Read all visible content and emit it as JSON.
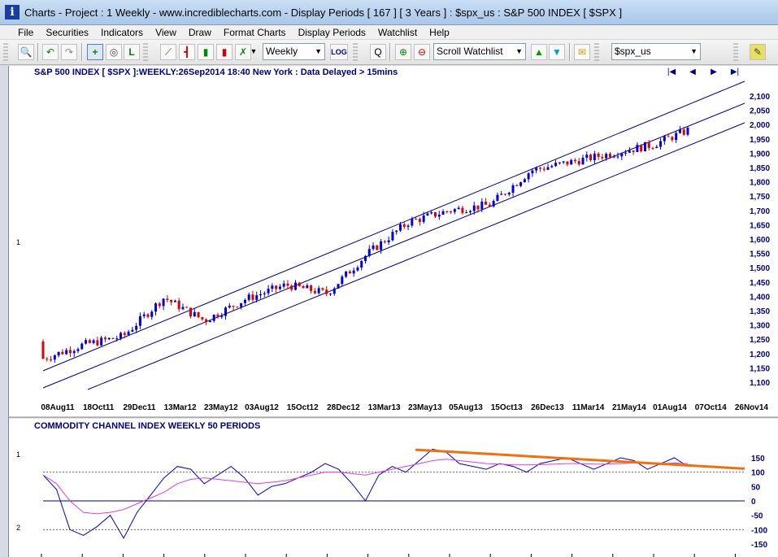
{
  "window": {
    "title": "Charts - Project : 1 Weekly - www.incrediblecharts.com - Display Periods  [ 167 ]  [ 3 Years ] : $spx_us : S&P 500 INDEX  [ $SPX ]",
    "icon_letter": "i"
  },
  "menu": [
    "File",
    "Securities",
    "Indicators",
    "View",
    "Draw",
    "Format Charts",
    "Display Periods",
    "Watchlist",
    "Help"
  ],
  "toolbar": {
    "period_select": "Weekly",
    "log_label": "LOG",
    "watchlist_select": "Scroll Watchlist",
    "security_select": "$spx_us"
  },
  "chart": {
    "header": "S&P 500 INDEX [ $SPX ]:WEEKLY:26Sep2014 18:40 New York : Data Delayed > 15mins",
    "nav": [
      "|◀",
      "◀",
      "▶",
      "▶|"
    ],
    "pane_label": "1",
    "y_ticks": [
      "2,100",
      "2,050",
      "2,000",
      "1,950",
      "1,900",
      "1,850",
      "1,800",
      "1,750",
      "1,700",
      "1,650",
      "1,600",
      "1,550",
      "1,500",
      "1,450",
      "1,400",
      "1,350",
      "1,300",
      "1,250",
      "1,200",
      "1,150",
      "1,100"
    ],
    "x_ticks": [
      "08Aug11",
      "18Oct11",
      "29Dec11",
      "13Mar12",
      "23May12",
      "03Aug12",
      "15Oct12",
      "28Dec12",
      "13Mar13",
      "23May13",
      "05Aug13",
      "15Oct13",
      "26Dec13",
      "11Mar14",
      "21May14",
      "01Aug14",
      "07Oct14",
      "26Nov14"
    ]
  },
  "indicator": {
    "header": "COMMODITY CHANNEL INDEX WEEKLY 50 PERIODS",
    "pane_labels": [
      "1",
      "2"
    ],
    "y_ticks": [
      "150",
      "100",
      "50",
      "0",
      "-50",
      "-100",
      "-150"
    ]
  },
  "colors": {
    "up_candle": "#0000dd",
    "down_candle": "#dd0000",
    "channel": "#000080",
    "cci": "#0000cc",
    "cci_signal": "#e040e0",
    "trendline": "#f07010"
  },
  "chart_data": [
    {
      "type": "candlestick",
      "title": "S&P 500 INDEX [ $SPX ]:WEEKLY:26Sep2014 18:40 New York : Data Delayed > 15mins",
      "ylim": [
        1075,
        2150
      ],
      "x_range": [
        "08Aug11",
        "26Nov14"
      ],
      "approx_close_path": [
        {
          "x": "08Aug11",
          "y": 1180
        },
        {
          "x": "18Oct11",
          "y": 1230
        },
        {
          "x": "29Dec11",
          "y": 1260
        },
        {
          "x": "13Mar12",
          "y": 1395
        },
        {
          "x": "23May12",
          "y": 1315
        },
        {
          "x": "03Aug12",
          "y": 1390
        },
        {
          "x": "15Oct12",
          "y": 1440
        },
        {
          "x": "28Dec12",
          "y": 1410
        },
        {
          "x": "13Mar13",
          "y": 1550
        },
        {
          "x": "23May13",
          "y": 1660
        },
        {
          "x": "05Aug13",
          "y": 1700
        },
        {
          "x": "15Oct13",
          "y": 1720
        },
        {
          "x": "26Dec13",
          "y": 1840
        },
        {
          "x": "11Mar14",
          "y": 1870
        },
        {
          "x": "21May14",
          "y": 1900
        },
        {
          "x": "01Aug14",
          "y": 1930
        },
        {
          "x": "26Sep14",
          "y": 1980
        }
      ],
      "channel_lines": 3
    },
    {
      "type": "line",
      "title": "COMMODITY CHANNEL INDEX WEEKLY 50 PERIODS",
      "ylim": [
        -160,
        180
      ],
      "reference_lines": [
        100,
        0,
        -100
      ],
      "series": [
        {
          "values": [
            90,
            40,
            -100,
            -120,
            -90,
            -50,
            -130,
            -40,
            20,
            80,
            120,
            110,
            60,
            90,
            120,
            80,
            20,
            50,
            60,
            80,
            100,
            130,
            110,
            60,
            0,
            90,
            120,
            100,
            140,
            180,
            170,
            130,
            120,
            110,
            130,
            120,
            100,
            130,
            140,
            150,
            130,
            110,
            130,
            150,
            140,
            110,
            130,
            150,
            120
          ]
        },
        {
          "values": [
            90,
            60,
            0,
            -40,
            -45,
            -40,
            -30,
            -10,
            10,
            30,
            60,
            75,
            80,
            75,
            70,
            65,
            60,
            65,
            70,
            80,
            90,
            100,
            100,
            95,
            90,
            100,
            110,
            120,
            130,
            140,
            145,
            140,
            135,
            130,
            128,
            125,
            125,
            126,
            128,
            130,
            130,
            128,
            128,
            130,
            132,
            130,
            130,
            132,
            130
          ]
        }
      ],
      "trendline_label": ""
    }
  ]
}
